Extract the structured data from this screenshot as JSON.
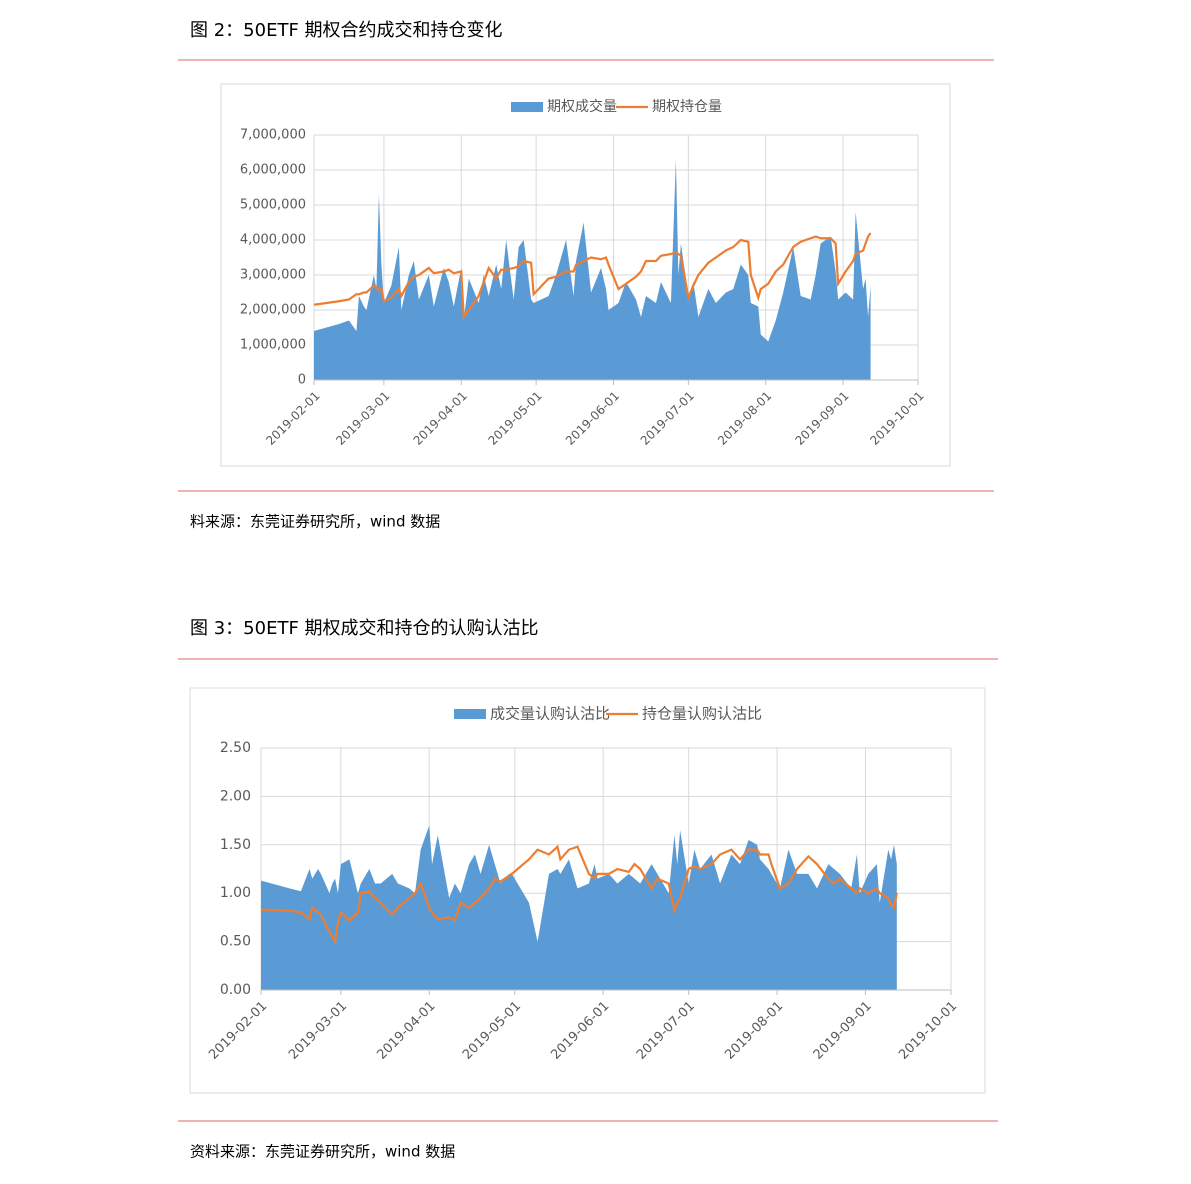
{
  "sources": [
    "料来源：东莞证券研究所，wind 数据",
    "资料来源：东莞证券研究所，wind 数据"
  ],
  "chart_data": [
    {
      "type": "area-line",
      "title": "图 2：50ETF 期权合约成交和持仓变化",
      "x": [
        "2019-02-01",
        "2019-02-11",
        "2019-02-15",
        "2019-02-18",
        "2019-02-19",
        "2019-02-21",
        "2019-02-22",
        "2019-02-25",
        "2019-02-26",
        "2019-02-27",
        "2019-02-28",
        "2019-03-01",
        "2019-03-04",
        "2019-03-07",
        "2019-03-08",
        "2019-03-11",
        "2019-03-13",
        "2019-03-15",
        "2019-03-19",
        "2019-03-21",
        "2019-03-25",
        "2019-03-27",
        "2019-03-29",
        "2019-04-01",
        "2019-04-02",
        "2019-04-04",
        "2019-04-08",
        "2019-04-10",
        "2019-04-12",
        "2019-04-15",
        "2019-04-17",
        "2019-04-19",
        "2019-04-22",
        "2019-04-24",
        "2019-04-26",
        "2019-04-29",
        "2019-04-30",
        "2019-05-06",
        "2019-05-09",
        "2019-05-13",
        "2019-05-16",
        "2019-05-17",
        "2019-05-20",
        "2019-05-23",
        "2019-05-27",
        "2019-05-29",
        "2019-05-30",
        "2019-06-03",
        "2019-06-06",
        "2019-06-10",
        "2019-06-12",
        "2019-06-14",
        "2019-06-18",
        "2019-06-20",
        "2019-06-24",
        "2019-06-26",
        "2019-06-27",
        "2019-06-28",
        "2019-07-01",
        "2019-07-03",
        "2019-07-05",
        "2019-07-09",
        "2019-07-12",
        "2019-07-16",
        "2019-07-19",
        "2019-07-22",
        "2019-07-25",
        "2019-07-26",
        "2019-07-29",
        "2019-07-30",
        "2019-08-02",
        "2019-08-05",
        "2019-08-08",
        "2019-08-12",
        "2019-08-15",
        "2019-08-19",
        "2019-08-21",
        "2019-08-23",
        "2019-08-27",
        "2019-08-29",
        "2019-08-30",
        "2019-09-02",
        "2019-09-05",
        "2019-09-06",
        "2019-09-09",
        "2019-09-10",
        "2019-09-11",
        "2019-09-12"
      ],
      "series": [
        {
          "name": "期权成交量",
          "kind": "area",
          "color": "#5b9bd5",
          "values": [
            1400000,
            1600000,
            1700000,
            1400000,
            2400000,
            2100000,
            2000000,
            3000000,
            2600000,
            5300000,
            3300000,
            2200000,
            2700000,
            3800000,
            2000000,
            3000000,
            3400000,
            2300000,
            3000000,
            2100000,
            3200000,
            2800000,
            2100000,
            3200000,
            1700000,
            2900000,
            2200000,
            3000000,
            2400000,
            3300000,
            2600000,
            4000000,
            2300000,
            3800000,
            4000000,
            2300000,
            2200000,
            2400000,
            3000000,
            4000000,
            2400000,
            3400000,
            4500000,
            2500000,
            3200000,
            2600000,
            2000000,
            2200000,
            2800000,
            2300000,
            1800000,
            2400000,
            2200000,
            2800000,
            2200000,
            6300000,
            3000000,
            3900000,
            2400000,
            2800000,
            1800000,
            2600000,
            2200000,
            2500000,
            2600000,
            3300000,
            3000000,
            2200000,
            2100000,
            1300000,
            1100000,
            1700000,
            2500000,
            3800000,
            2400000,
            2300000,
            3000000,
            3900000,
            4100000,
            3100000,
            2300000,
            2500000,
            2300000,
            4800000,
            2600000,
            2900000,
            1800000,
            2700000
          ]
        },
        {
          "name": "期权持仓量",
          "kind": "line",
          "color": "#ed7d31",
          "values": [
            2150000,
            2250000,
            2300000,
            2450000,
            2450000,
            2500000,
            2500000,
            2700000,
            2650000,
            2550000,
            2600000,
            2250000,
            2350000,
            2600000,
            2400000,
            2800000,
            2950000,
            3000000,
            3200000,
            3050000,
            3100000,
            3150000,
            3050000,
            3100000,
            1800000,
            2000000,
            2400000,
            2800000,
            3200000,
            2900000,
            3150000,
            3150000,
            3200000,
            3250000,
            3400000,
            3350000,
            2450000,
            2900000,
            2950000,
            3100000,
            3100000,
            3300000,
            3400000,
            3500000,
            3450000,
            3500000,
            3300000,
            2600000,
            2750000,
            2950000,
            3100000,
            3400000,
            3400000,
            3550000,
            3600000,
            3650000,
            3600000,
            3550000,
            2350000,
            2700000,
            3000000,
            3350000,
            3500000,
            3700000,
            3800000,
            4000000,
            3950000,
            3000000,
            2350000,
            2600000,
            2750000,
            3100000,
            3300000,
            3800000,
            3950000,
            4050000,
            4100000,
            4050000,
            4050000,
            3900000,
            2750000,
            3100000,
            3400000,
            3600000,
            3700000,
            3900000,
            4100000,
            4200000
          ]
        }
      ],
      "xlim": [
        "2019-02-01",
        "2019-10-01"
      ],
      "xticks": [
        "2019-02-01",
        "2019-03-01",
        "2019-04-01",
        "2019-05-01",
        "2019-06-01",
        "2019-07-01",
        "2019-08-01",
        "2019-09-01",
        "2019-10-01"
      ],
      "ylim": [
        0,
        7000000
      ],
      "yticks": [
        0,
        {
          "value": 1000000,
          "label": "1,000,000"
        },
        {
          "value": 2000000,
          "label": "2,000,000"
        },
        {
          "value": 3000000,
          "label": "3,000,000"
        },
        {
          "value": 4000000,
          "label": "4,000,000"
        },
        {
          "value": 5000000,
          "label": "5,000,000"
        },
        {
          "value": 6000000,
          "label": "6,000,000"
        },
        {
          "value": 7000000,
          "label": "7,000,000"
        }
      ],
      "grid": true,
      "legend": "top"
    },
    {
      "type": "area-line",
      "title": "图 3：50ETF 期权成交和持仓的认购认沽比",
      "x": [
        "2019-02-01",
        "2019-02-11",
        "2019-02-15",
        "2019-02-18",
        "2019-02-19",
        "2019-02-21",
        "2019-02-22",
        "2019-02-25",
        "2019-02-26",
        "2019-02-27",
        "2019-02-28",
        "2019-03-01",
        "2019-03-04",
        "2019-03-07",
        "2019-03-08",
        "2019-03-11",
        "2019-03-13",
        "2019-03-15",
        "2019-03-19",
        "2019-03-21",
        "2019-03-25",
        "2019-03-27",
        "2019-03-29",
        "2019-04-01",
        "2019-04-02",
        "2019-04-04",
        "2019-04-08",
        "2019-04-10",
        "2019-04-12",
        "2019-04-15",
        "2019-04-17",
        "2019-04-19",
        "2019-04-22",
        "2019-04-24",
        "2019-04-26",
        "2019-04-29",
        "2019-04-30",
        "2019-05-06",
        "2019-05-09",
        "2019-05-13",
        "2019-05-16",
        "2019-05-17",
        "2019-05-20",
        "2019-05-23",
        "2019-05-27",
        "2019-05-29",
        "2019-05-30",
        "2019-06-03",
        "2019-06-06",
        "2019-06-10",
        "2019-06-12",
        "2019-06-14",
        "2019-06-18",
        "2019-06-20",
        "2019-06-24",
        "2019-06-26",
        "2019-06-27",
        "2019-06-28",
        "2019-07-01",
        "2019-07-03",
        "2019-07-05",
        "2019-07-09",
        "2019-07-12",
        "2019-07-16",
        "2019-07-19",
        "2019-07-22",
        "2019-07-25",
        "2019-07-26",
        "2019-07-29",
        "2019-07-30",
        "2019-08-02",
        "2019-08-05",
        "2019-08-08",
        "2019-08-12",
        "2019-08-15",
        "2019-08-19",
        "2019-08-21",
        "2019-08-23",
        "2019-08-27",
        "2019-08-29",
        "2019-08-30",
        "2019-09-02",
        "2019-09-05",
        "2019-09-06",
        "2019-09-09",
        "2019-09-10",
        "2019-09-11",
        "2019-09-12"
      ],
      "series": [
        {
          "name": "成交量认购认沽比",
          "kind": "area",
          "color": "#5b9bd5",
          "values": [
            1.13,
            1.05,
            1.02,
            1.25,
            1.15,
            1.25,
            1.2,
            1.0,
            1.1,
            1.15,
            1.0,
            1.3,
            1.35,
            1.0,
            1.1,
            1.25,
            1.1,
            1.1,
            1.2,
            1.1,
            1.05,
            1.0,
            1.45,
            1.7,
            1.3,
            1.6,
            0.95,
            1.1,
            1.0,
            1.3,
            1.4,
            1.2,
            1.5,
            1.3,
            1.1,
            1.2,
            1.2,
            0.9,
            0.5,
            1.2,
            1.25,
            1.2,
            1.35,
            1.05,
            1.1,
            1.3,
            1.15,
            1.2,
            1.1,
            1.2,
            1.15,
            1.1,
            1.3,
            1.2,
            1.0,
            1.6,
            1.3,
            1.65,
            1.1,
            1.45,
            1.25,
            1.4,
            1.1,
            1.4,
            1.3,
            1.55,
            1.5,
            1.35,
            1.25,
            1.2,
            1.05,
            1.45,
            1.2,
            1.2,
            1.05,
            1.3,
            1.25,
            1.2,
            1.05,
            1.4,
            1.0,
            1.2,
            1.3,
            0.9,
            1.45,
            1.35,
            1.5,
            1.3
          ]
        },
        {
          "name": "持仓量认购认沽比",
          "kind": "line",
          "color": "#ed7d31",
          "values": [
            0.83,
            0.82,
            0.8,
            0.73,
            0.85,
            0.8,
            0.78,
            0.6,
            0.55,
            0.5,
            0.7,
            0.8,
            0.72,
            0.8,
            1.0,
            1.02,
            0.95,
            0.9,
            0.78,
            0.85,
            0.95,
            1.0,
            1.1,
            0.85,
            0.8,
            0.73,
            0.75,
            0.72,
            0.9,
            0.85,
            0.9,
            0.95,
            1.05,
            1.15,
            1.12,
            1.18,
            1.2,
            1.35,
            1.45,
            1.4,
            1.48,
            1.35,
            1.45,
            1.48,
            1.2,
            1.15,
            1.2,
            1.2,
            1.25,
            1.22,
            1.3,
            1.25,
            1.05,
            1.15,
            1.1,
            0.82,
            0.9,
            0.95,
            1.25,
            1.28,
            1.25,
            1.3,
            1.4,
            1.45,
            1.35,
            1.45,
            1.45,
            1.4,
            1.4,
            1.3,
            1.05,
            1.1,
            1.25,
            1.38,
            1.3,
            1.15,
            1.1,
            1.15,
            1.05,
            1.0,
            1.05,
            1.0,
            1.05,
            1.0,
            0.95,
            0.88,
            0.85,
            1.0
          ]
        }
      ],
      "xlim": [
        "2019-02-01",
        "2019-10-01"
      ],
      "xticks": [
        "2019-02-01",
        "2019-03-01",
        "2019-04-01",
        "2019-05-01",
        "2019-06-01",
        "2019-07-01",
        "2019-08-01",
        "2019-09-01",
        "2019-10-01"
      ],
      "ylim": [
        0,
        2.5
      ],
      "yticks": [
        {
          "value": 0,
          "label": "0.00"
        },
        {
          "value": 0.5,
          "label": "0.50"
        },
        {
          "value": 1,
          "label": "1.00"
        },
        {
          "value": 1.5,
          "label": "1.50"
        },
        {
          "value": 2,
          "label": "2.00"
        },
        {
          "value": 2.5,
          "label": "2.50"
        }
      ],
      "grid": true,
      "legend": "top"
    }
  ]
}
